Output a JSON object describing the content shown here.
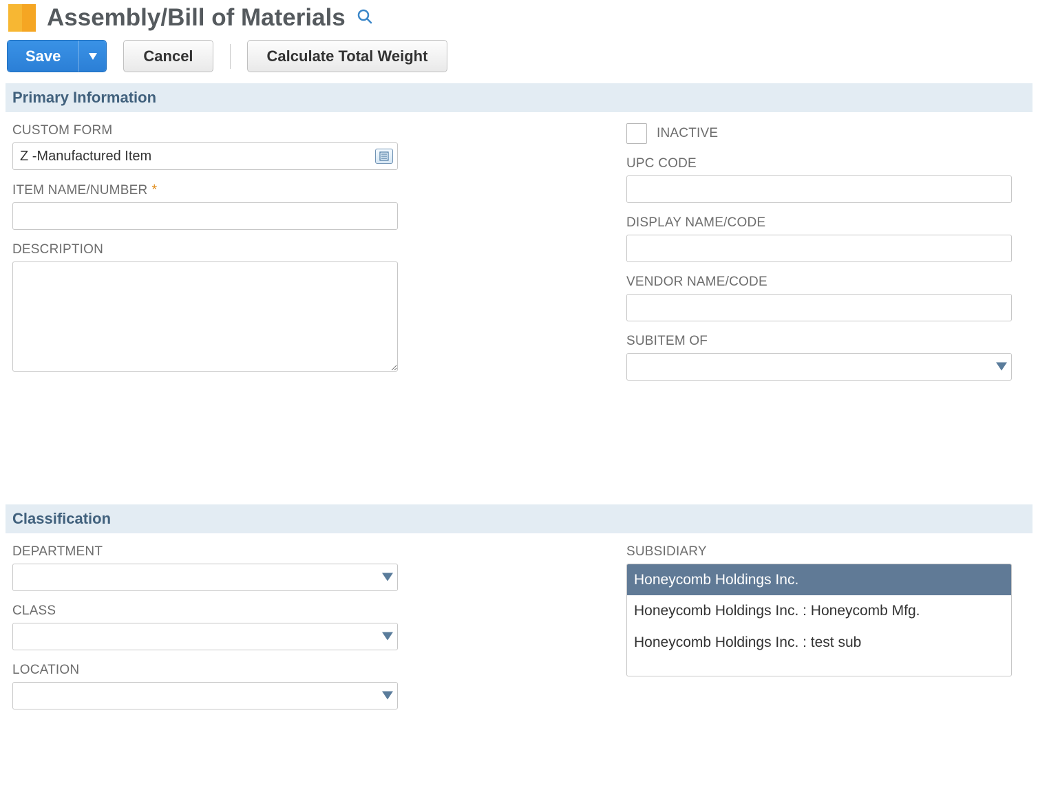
{
  "header": {
    "title": "Assembly/Bill of Materials"
  },
  "toolbar": {
    "save_label": "Save",
    "cancel_label": "Cancel",
    "calc_weight_label": "Calculate Total Weight"
  },
  "sections": {
    "primary_info_title": "Primary Information",
    "classification_title": "Classification"
  },
  "primary": {
    "custom_form": {
      "label": "CUSTOM FORM",
      "value": "Z -Manufactured Item"
    },
    "item_number": {
      "label": "ITEM NAME/NUMBER",
      "value": "",
      "required": true
    },
    "description": {
      "label": "DESCRIPTION",
      "value": ""
    },
    "inactive": {
      "label": "INACTIVE",
      "checked": false
    },
    "upc_code": {
      "label": "UPC CODE",
      "value": ""
    },
    "display_name": {
      "label": "DISPLAY NAME/CODE",
      "value": ""
    },
    "vendor_name": {
      "label": "VENDOR NAME/CODE",
      "value": ""
    },
    "subitem_of": {
      "label": "SUBITEM OF",
      "value": ""
    }
  },
  "classification": {
    "department": {
      "label": "DEPARTMENT",
      "value": ""
    },
    "class": {
      "label": "CLASS",
      "value": ""
    },
    "location": {
      "label": "LOCATION",
      "value": ""
    },
    "subsidiary": {
      "label": "SUBSIDIARY",
      "options": [
        {
          "text": "Honeycomb Holdings Inc.",
          "selected": true
        },
        {
          "text": "Honeycomb Holdings Inc. : Honeycomb Mfg.",
          "selected": false
        },
        {
          "text": "Honeycomb Holdings Inc. : test sub",
          "selected": false
        }
      ]
    }
  },
  "style": {
    "primary_button_bg": "#2b7fd6",
    "section_bar_bg": "#e3ecf3",
    "section_bar_fg": "#41617d",
    "label_color": "#6d6d6d",
    "border_color": "#c7c7c7",
    "listbox_selected_bg": "#607a96",
    "listbox_selected_fg": "#ffffff",
    "icon_orange_left": "#f7b733",
    "icon_orange_right": "#f5a623",
    "search_icon_color": "#3a86c8",
    "caret_fill": "#5a7c9b"
  }
}
